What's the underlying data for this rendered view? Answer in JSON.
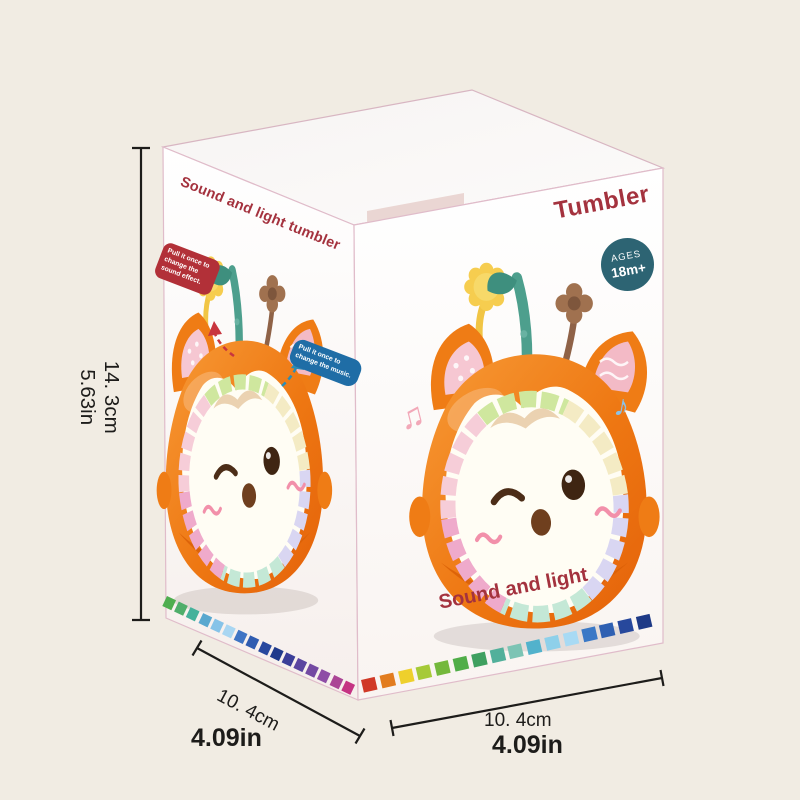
{
  "page": {
    "background_color": "#f1ece3"
  },
  "box": {
    "panel_border_color": "#e0bcca",
    "accent_text_color": "#a4323e",
    "left_panel": {
      "title": "Sound and light tumbler",
      "sound_bubble": {
        "bg": "#b23038",
        "lines": [
          "Pull it once to",
          "change the",
          "sound effect."
        ]
      },
      "music_bubble": {
        "bg": "#1f6da6",
        "lines": [
          "Pull it once to",
          "change the music."
        ]
      }
    },
    "front_panel": {
      "brand": "Tumbler",
      "age_badge": {
        "bg": "#2d6473",
        "line1": "AGES",
        "line2": "18m+"
      },
      "caption": "Sound and light"
    },
    "strips": {
      "left_colors": [
        "#4fae4f",
        "#4fae6b",
        "#45b29b",
        "#59a8cf",
        "#86c3e8",
        "#a9d6f2",
        "#3e74c4",
        "#2f5cb0",
        "#28489e",
        "#203a8c",
        "#3b3e99",
        "#5a45a0",
        "#7349a2",
        "#8e4da6",
        "#ab4596",
        "#c53383"
      ],
      "front_colors": [
        "#d03826",
        "#e27c1f",
        "#eed02c",
        "#a6ca38",
        "#74b83c",
        "#50ad48",
        "#3fa060",
        "#52b09b",
        "#7cc4b4",
        "#52b2cc",
        "#8ed0ea",
        "#a8daf4",
        "#3a78c6",
        "#2f60b2",
        "#27489c",
        "#1e3a86"
      ]
    },
    "icons": {
      "music_note_double": "♫",
      "music_note_single": "♪"
    },
    "toy": {
      "body_color": "#ef7c15",
      "description": "orange fox tumbler toy with light-up face ring and three pull toys"
    }
  },
  "dimensions": {
    "height": {
      "cm": "14. 3cm",
      "inch": "5.63in"
    },
    "depth_left": {
      "cm": "10. 4cm",
      "inch": "4.09in"
    },
    "width_right": {
      "cm": "10. 4cm",
      "inch": "4.09in"
    }
  }
}
